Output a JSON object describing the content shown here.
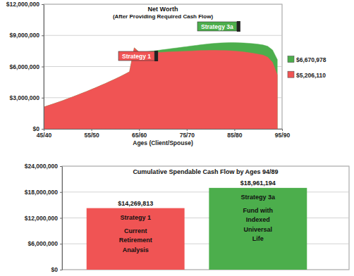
{
  "chart_data": [
    {
      "type": "area",
      "title": "Net Worth",
      "subtitle": "(After Providing Required Cash Flow)",
      "x_label": "Ages (Client/Spouse)",
      "x": [
        45,
        46,
        47,
        48,
        49,
        50,
        51,
        52,
        53,
        54,
        55,
        56,
        57,
        58,
        59,
        60,
        61,
        62,
        63,
        64,
        65,
        66,
        67,
        68,
        69,
        70,
        71,
        72,
        73,
        74,
        75,
        76,
        77,
        78,
        79,
        80,
        81,
        82,
        83,
        84,
        85,
        86,
        87,
        88,
        89,
        90,
        91,
        92,
        93,
        94
      ],
      "xlim": [
        45,
        95
      ],
      "xticks": [
        {
          "value": 45,
          "label": "45/40"
        },
        {
          "value": 55,
          "label": "55/50"
        },
        {
          "value": 65,
          "label": "65/60"
        },
        {
          "value": 75,
          "label": "75/70"
        },
        {
          "value": 85,
          "label": "85/80"
        },
        {
          "value": 95,
          "label": "95/90"
        }
      ],
      "ylim": [
        0,
        12000000
      ],
      "yticks": [
        {
          "value": 0,
          "label": "$0"
        },
        {
          "value": 3000000,
          "label": "$3,000,000"
        },
        {
          "value": 6000000,
          "label": "$6,000,000"
        },
        {
          "value": 9000000,
          "label": "$9,000,000"
        },
        {
          "value": 12000000,
          "label": "$12,000,000"
        }
      ],
      "grid": true,
      "data_labels": true,
      "series": [
        {
          "name": "Strategy 1",
          "color": "#f05454",
          "values": [
            2100000,
            2250000,
            2400000,
            2560000,
            2720000,
            2890000,
            3060000,
            3240000,
            3420000,
            3600000,
            3790000,
            3980000,
            4180000,
            4380000,
            4590000,
            4800000,
            5020000,
            5250000,
            5500000,
            7800000,
            7350000,
            7300000,
            7320000,
            7340000,
            7360000,
            7380000,
            7400000,
            7420000,
            7440000,
            7460000,
            7480000,
            7500000,
            7520000,
            7540000,
            7550000,
            7560000,
            7560000,
            7550000,
            7540000,
            7520000,
            7490000,
            7450000,
            7400000,
            7340000,
            7270000,
            7190000,
            7100000,
            6900000,
            6400000,
            5206110
          ],
          "value_labels": [
            null,
            null,
            null,
            null,
            null,
            null,
            null,
            null,
            null,
            null,
            null,
            null,
            null,
            null,
            null,
            null,
            null,
            null,
            null,
            null,
            null,
            null,
            null,
            null,
            null,
            null,
            null,
            null,
            null,
            null,
            null,
            null,
            null,
            null,
            null,
            null,
            null,
            null,
            null,
            null,
            null,
            null,
            null,
            null,
            null,
            null,
            null,
            null,
            null,
            "$5,206,110"
          ]
        },
        {
          "name": "Strategy 3a",
          "color": "#4cae4c",
          "values": [
            2100000,
            2250000,
            2400000,
            2560000,
            2720000,
            2890000,
            3060000,
            3240000,
            3420000,
            3600000,
            3790000,
            3980000,
            4180000,
            4380000,
            4590000,
            4800000,
            5020000,
            5250000,
            5500000,
            7800000,
            7400000,
            7400000,
            7450000,
            7500000,
            7560000,
            7620000,
            7680000,
            7740000,
            7800000,
            7860000,
            7920000,
            7980000,
            8040000,
            8100000,
            8150000,
            8200000,
            8240000,
            8270000,
            8290000,
            8300000,
            8300000,
            8290000,
            8270000,
            8240000,
            8200000,
            8150000,
            8080000,
            7950000,
            7600000,
            6670978
          ],
          "value_labels": [
            null,
            null,
            null,
            null,
            null,
            null,
            null,
            null,
            null,
            null,
            null,
            null,
            null,
            null,
            null,
            null,
            null,
            null,
            null,
            null,
            null,
            null,
            null,
            null,
            null,
            null,
            null,
            null,
            null,
            null,
            null,
            null,
            null,
            null,
            null,
            null,
            null,
            null,
            null,
            null,
            null,
            null,
            null,
            null,
            null,
            null,
            null,
            null,
            null,
            "$6,670,978"
          ]
        }
      ]
    },
    {
      "type": "bar",
      "title": "Cumulative Spendable Cash Flow by Ages 94/89",
      "categories": [
        "Strategy 1",
        "Strategy 3a"
      ],
      "annotations": [
        [
          "Current",
          "Retirement",
          "Analysis"
        ],
        [
          "Fund with",
          "Indexed",
          "Universal",
          "Life"
        ]
      ],
      "values": [
        14269813,
        18961194
      ],
      "value_labels": [
        "$14,269,813",
        "$18,961,194"
      ],
      "colors": [
        "#f05454",
        "#4cae4c"
      ],
      "ylim": [
        0,
        24000000
      ],
      "yticks": [
        {
          "value": 0,
          "label": "$0"
        },
        {
          "value": 6000000,
          "label": "$6,000,000"
        },
        {
          "value": 12000000,
          "label": "$12,000,000"
        },
        {
          "value": 18000000,
          "label": "$18,000,000"
        },
        {
          "value": 24000000,
          "label": "$24,000,000"
        }
      ],
      "grid": true,
      "data_labels": true,
      "tick_labels": "y"
    }
  ]
}
